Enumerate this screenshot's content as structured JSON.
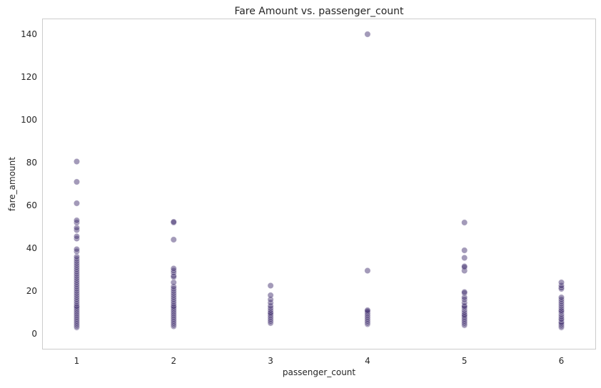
{
  "chart_data": {
    "type": "scatter",
    "title": "Fare Amount vs. passenger_count",
    "xlabel": "passenger_count",
    "ylabel": "fare_amount",
    "xlim": [
      0.65,
      6.35
    ],
    "ylim": [
      -7,
      147
    ],
    "x_ticks": [
      1,
      2,
      3,
      4,
      5,
      6
    ],
    "y_ticks": [
      0,
      20,
      40,
      60,
      80,
      100,
      120,
      140
    ],
    "grid": false,
    "marker_color": "#473673",
    "marker_opacity": 0.5,
    "frame_color": "#cccccc",
    "points": [
      {
        "x": 1,
        "y": 3
      },
      {
        "x": 1,
        "y": 3.5
      },
      {
        "x": 1,
        "y": 4
      },
      {
        "x": 1,
        "y": 4.5
      },
      {
        "x": 1,
        "y": 5
      },
      {
        "x": 1,
        "y": 5.5
      },
      {
        "x": 1,
        "y": 6
      },
      {
        "x": 1,
        "y": 6.5
      },
      {
        "x": 1,
        "y": 7
      },
      {
        "x": 1,
        "y": 7.5
      },
      {
        "x": 1,
        "y": 8
      },
      {
        "x": 1,
        "y": 8.5
      },
      {
        "x": 1,
        "y": 9
      },
      {
        "x": 1,
        "y": 9.5
      },
      {
        "x": 1,
        "y": 10
      },
      {
        "x": 1,
        "y": 10.5
      },
      {
        "x": 1,
        "y": 11
      },
      {
        "x": 1,
        "y": 11.5
      },
      {
        "x": 1,
        "y": 12
      },
      {
        "x": 1,
        "y": 12.5
      },
      {
        "x": 1,
        "y": 13
      },
      {
        "x": 1,
        "y": 14
      },
      {
        "x": 1,
        "y": 15
      },
      {
        "x": 1,
        "y": 16
      },
      {
        "x": 1,
        "y": 17
      },
      {
        "x": 1,
        "y": 18
      },
      {
        "x": 1,
        "y": 19
      },
      {
        "x": 1,
        "y": 20
      },
      {
        "x": 1,
        "y": 21
      },
      {
        "x": 1,
        "y": 22
      },
      {
        "x": 1,
        "y": 23
      },
      {
        "x": 1,
        "y": 24
      },
      {
        "x": 1,
        "y": 25
      },
      {
        "x": 1,
        "y": 26
      },
      {
        "x": 1,
        "y": 27
      },
      {
        "x": 1,
        "y": 28
      },
      {
        "x": 1,
        "y": 29
      },
      {
        "x": 1,
        "y": 30
      },
      {
        "x": 1,
        "y": 31
      },
      {
        "x": 1,
        "y": 32
      },
      {
        "x": 1,
        "y": 33
      },
      {
        "x": 1,
        "y": 34
      },
      {
        "x": 1,
        "y": 35
      },
      {
        "x": 1,
        "y": 36
      },
      {
        "x": 1,
        "y": 38.5
      },
      {
        "x": 1,
        "y": 39.5
      },
      {
        "x": 1,
        "y": 44.5
      },
      {
        "x": 1,
        "y": 45.5
      },
      {
        "x": 1,
        "y": 48.5
      },
      {
        "x": 1,
        "y": 49.5
      },
      {
        "x": 1,
        "y": 52
      },
      {
        "x": 1,
        "y": 53
      },
      {
        "x": 1,
        "y": 61
      },
      {
        "x": 1,
        "y": 71
      },
      {
        "x": 1,
        "y": 80.5
      },
      {
        "x": 2,
        "y": 3.5
      },
      {
        "x": 2,
        "y": 4
      },
      {
        "x": 2,
        "y": 4.5
      },
      {
        "x": 2,
        "y": 5
      },
      {
        "x": 2,
        "y": 5.5
      },
      {
        "x": 2,
        "y": 6
      },
      {
        "x": 2,
        "y": 6.5
      },
      {
        "x": 2,
        "y": 7
      },
      {
        "x": 2,
        "y": 7.5
      },
      {
        "x": 2,
        "y": 8
      },
      {
        "x": 2,
        "y": 8.5
      },
      {
        "x": 2,
        "y": 9
      },
      {
        "x": 2,
        "y": 9.5
      },
      {
        "x": 2,
        "y": 10
      },
      {
        "x": 2,
        "y": 10.5
      },
      {
        "x": 2,
        "y": 11
      },
      {
        "x": 2,
        "y": 11.5
      },
      {
        "x": 2,
        "y": 12
      },
      {
        "x": 2,
        "y": 12.5
      },
      {
        "x": 2,
        "y": 13
      },
      {
        "x": 2,
        "y": 14
      },
      {
        "x": 2,
        "y": 15
      },
      {
        "x": 2,
        "y": 16
      },
      {
        "x": 2,
        "y": 17
      },
      {
        "x": 2,
        "y": 18
      },
      {
        "x": 2,
        "y": 19
      },
      {
        "x": 2,
        "y": 20
      },
      {
        "x": 2,
        "y": 21
      },
      {
        "x": 2,
        "y": 22
      },
      {
        "x": 2,
        "y": 24
      },
      {
        "x": 2,
        "y": 26.5
      },
      {
        "x": 2,
        "y": 27
      },
      {
        "x": 2,
        "y": 28.5
      },
      {
        "x": 2,
        "y": 29.5
      },
      {
        "x": 2,
        "y": 30.5
      },
      {
        "x": 2,
        "y": 44
      },
      {
        "x": 2,
        "y": 52
      },
      {
        "x": 2,
        "y": 52.3
      },
      {
        "x": 3,
        "y": 5
      },
      {
        "x": 3,
        "y": 5.5
      },
      {
        "x": 3,
        "y": 6
      },
      {
        "x": 3,
        "y": 6.5
      },
      {
        "x": 3,
        "y": 7
      },
      {
        "x": 3,
        "y": 7.5
      },
      {
        "x": 3,
        "y": 8
      },
      {
        "x": 3,
        "y": 8.5
      },
      {
        "x": 3,
        "y": 9
      },
      {
        "x": 3,
        "y": 9.5
      },
      {
        "x": 3,
        "y": 10
      },
      {
        "x": 3,
        "y": 11
      },
      {
        "x": 3,
        "y": 12
      },
      {
        "x": 3,
        "y": 13
      },
      {
        "x": 3,
        "y": 14.5
      },
      {
        "x": 3,
        "y": 16
      },
      {
        "x": 3,
        "y": 18
      },
      {
        "x": 3,
        "y": 22.5
      },
      {
        "x": 4,
        "y": 4.5
      },
      {
        "x": 4,
        "y": 5
      },
      {
        "x": 4,
        "y": 5.5
      },
      {
        "x": 4,
        "y": 6
      },
      {
        "x": 4,
        "y": 6.5
      },
      {
        "x": 4,
        "y": 7
      },
      {
        "x": 4,
        "y": 7.5
      },
      {
        "x": 4,
        "y": 8
      },
      {
        "x": 4,
        "y": 8.5
      },
      {
        "x": 4,
        "y": 9
      },
      {
        "x": 4,
        "y": 9.5
      },
      {
        "x": 4,
        "y": 10
      },
      {
        "x": 4,
        "y": 10.5
      },
      {
        "x": 4,
        "y": 11
      },
      {
        "x": 4,
        "y": 29.5
      },
      {
        "x": 4,
        "y": 140
      },
      {
        "x": 5,
        "y": 4
      },
      {
        "x": 5,
        "y": 4.5
      },
      {
        "x": 5,
        "y": 5
      },
      {
        "x": 5,
        "y": 5.5
      },
      {
        "x": 5,
        "y": 6
      },
      {
        "x": 5,
        "y": 6.5
      },
      {
        "x": 5,
        "y": 7
      },
      {
        "x": 5,
        "y": 7.5
      },
      {
        "x": 5,
        "y": 8
      },
      {
        "x": 5,
        "y": 8.5
      },
      {
        "x": 5,
        "y": 9
      },
      {
        "x": 5,
        "y": 10
      },
      {
        "x": 5,
        "y": 11
      },
      {
        "x": 5,
        "y": 12
      },
      {
        "x": 5,
        "y": 12.5
      },
      {
        "x": 5,
        "y": 13
      },
      {
        "x": 5,
        "y": 14.5
      },
      {
        "x": 5,
        "y": 16
      },
      {
        "x": 5,
        "y": 17
      },
      {
        "x": 5,
        "y": 19
      },
      {
        "x": 5,
        "y": 19.5
      },
      {
        "x": 5,
        "y": 29.5
      },
      {
        "x": 5,
        "y": 31
      },
      {
        "x": 5,
        "y": 31.5
      },
      {
        "x": 5,
        "y": 35.5
      },
      {
        "x": 5,
        "y": 39
      },
      {
        "x": 5,
        "y": 52
      },
      {
        "x": 6,
        "y": 3
      },
      {
        "x": 6,
        "y": 3.5
      },
      {
        "x": 6,
        "y": 4
      },
      {
        "x": 6,
        "y": 4.5
      },
      {
        "x": 6,
        "y": 5
      },
      {
        "x": 6,
        "y": 5.5
      },
      {
        "x": 6,
        "y": 6.5
      },
      {
        "x": 6,
        "y": 7
      },
      {
        "x": 6,
        "y": 8
      },
      {
        "x": 6,
        "y": 9
      },
      {
        "x": 6,
        "y": 10
      },
      {
        "x": 6,
        "y": 10.5
      },
      {
        "x": 6,
        "y": 11
      },
      {
        "x": 6,
        "y": 12
      },
      {
        "x": 6,
        "y": 13
      },
      {
        "x": 6,
        "y": 14
      },
      {
        "x": 6,
        "y": 15
      },
      {
        "x": 6,
        "y": 16
      },
      {
        "x": 6,
        "y": 17
      },
      {
        "x": 6,
        "y": 21
      },
      {
        "x": 6,
        "y": 21.5
      },
      {
        "x": 6,
        "y": 22.5
      },
      {
        "x": 6,
        "y": 24
      }
    ]
  }
}
